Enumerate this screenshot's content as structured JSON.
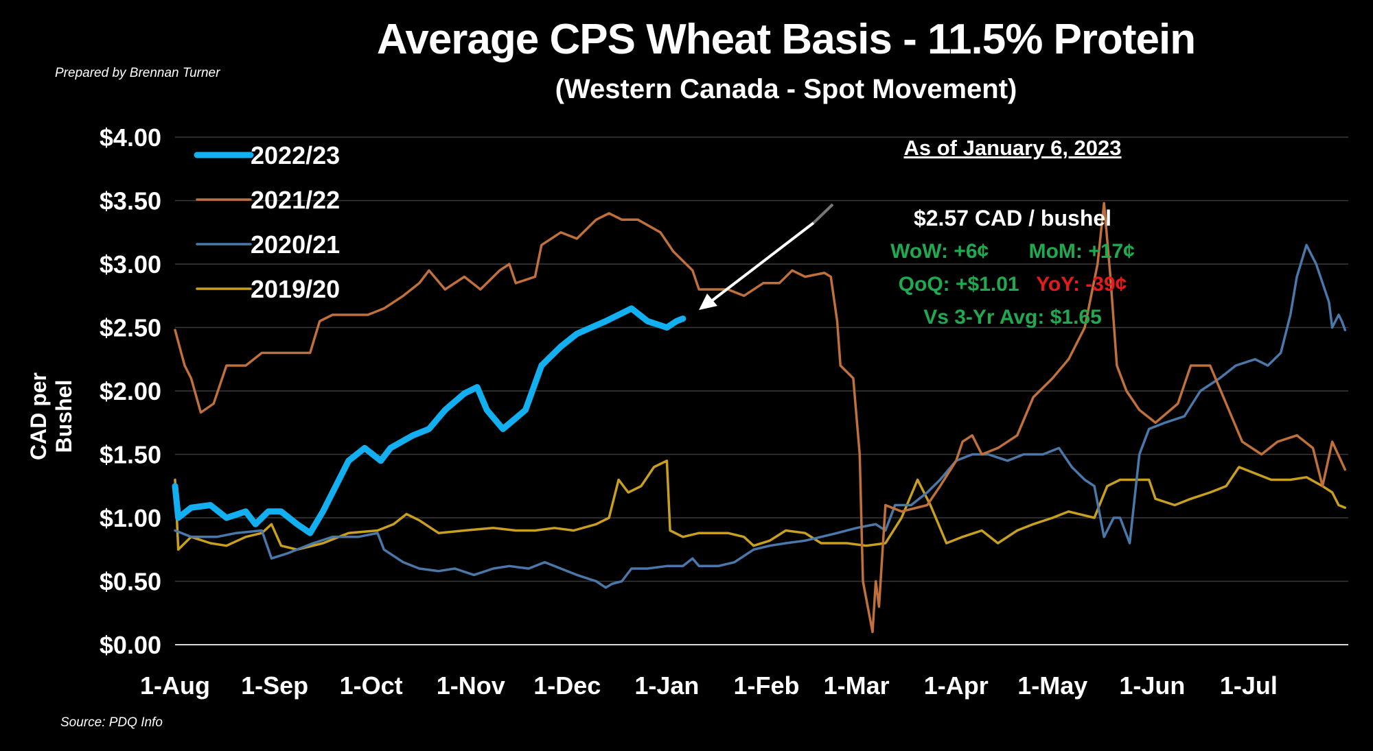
{
  "chart_data": {
    "type": "line",
    "title": "Average CPS Wheat Basis - 11.5% Protein",
    "subtitle": "(Western Canada - Spot Movement)",
    "prepared_by": "Prepared by Brennan Turner",
    "source": "Source: PDQ Info",
    "ylabel": "CAD per Bushel",
    "xlabel": "",
    "ylim": [
      0,
      4
    ],
    "yticks": [
      "$0.00",
      "$0.50",
      "$1.00",
      "$1.50",
      "$2.00",
      "$2.50",
      "$3.00",
      "$3.50",
      "$4.00"
    ],
    "xticks": [
      "1-Aug",
      "1-Sep",
      "1-Oct",
      "1-Nov",
      "1-Dec",
      "1-Jan",
      "1-Feb",
      "1-Mar",
      "1-Apr",
      "1-May",
      "1-Jun",
      "1-Jul"
    ],
    "grid": true,
    "legend_position": "top-left",
    "background": "#000000",
    "series": [
      {
        "name": "2022/23",
        "color": "#12b0f0",
        "x": [
          "08-01",
          "08-02",
          "08-06",
          "08-12",
          "08-17",
          "08-23",
          "08-26",
          "08-30",
          "09-03",
          "09-08",
          "09-12",
          "09-16",
          "09-20",
          "09-24",
          "09-29",
          "10-04",
          "10-07",
          "10-14",
          "10-19",
          "10-24",
          "10-30",
          "11-03",
          "11-06",
          "11-11",
          "11-18",
          "11-23",
          "11-29",
          "12-04",
          "12-13",
          "12-21",
          "12-26",
          "01-01",
          "01-04",
          "01-06"
        ],
        "y": [
          1.25,
          1.0,
          1.08,
          1.1,
          1.0,
          1.05,
          0.95,
          1.05,
          1.05,
          0.95,
          0.88,
          1.05,
          1.25,
          1.45,
          1.55,
          1.45,
          1.55,
          1.65,
          1.7,
          1.85,
          1.98,
          2.03,
          1.85,
          1.7,
          1.85,
          2.2,
          2.35,
          2.45,
          2.55,
          2.65,
          2.55,
          2.5,
          2.55,
          2.57
        ]
      },
      {
        "name": "2021/22",
        "color": "#c0703a",
        "x": [
          "08-01",
          "08-04",
          "08-06",
          "08-09",
          "08-13",
          "08-17",
          "08-23",
          "08-28",
          "09-03",
          "09-12",
          "09-15",
          "09-19",
          "09-24",
          "09-30",
          "10-05",
          "10-11",
          "10-16",
          "10-19",
          "10-24",
          "10-30",
          "11-04",
          "11-10",
          "11-13",
          "11-15",
          "11-21",
          "11-23",
          "11-29",
          "12-04",
          "12-10",
          "12-14",
          "12-18",
          "12-23",
          "12-30",
          "01-03",
          "01-09",
          "01-11",
          "01-20",
          "01-25",
          "01-31",
          "02-05",
          "02-09",
          "02-13",
          "02-19",
          "02-21",
          "02-23",
          "02-24",
          "02-28",
          "03-02",
          "03-03",
          "03-06",
          "03-07",
          "03-08",
          "03-10",
          "03-15",
          "03-23",
          "03-27",
          "04-01",
          "04-03",
          "04-06",
          "04-09",
          "04-14",
          "04-20",
          "04-25",
          "05-01",
          "05-06",
          "05-11",
          "05-15",
          "05-17",
          "05-19",
          "05-21",
          "05-24",
          "05-28",
          "06-02",
          "06-09",
          "06-13",
          "06-19",
          "06-24",
          "06-29",
          "07-05",
          "07-10",
          "07-16",
          "07-21",
          "07-24",
          "07-27",
          "07-31"
        ],
        "y": [
          2.48,
          2.2,
          2.1,
          1.83,
          1.9,
          2.2,
          2.2,
          2.3,
          2.3,
          2.3,
          2.55,
          2.6,
          2.6,
          2.6,
          2.65,
          2.75,
          2.85,
          2.95,
          2.8,
          2.9,
          2.8,
          2.95,
          3.0,
          2.85,
          2.9,
          3.15,
          3.25,
          3.2,
          3.35,
          3.4,
          3.35,
          3.35,
          3.25,
          3.1,
          2.95,
          2.8,
          2.8,
          2.75,
          2.85,
          2.85,
          2.95,
          2.9,
          2.93,
          2.9,
          2.55,
          2.2,
          2.1,
          1.5,
          0.5,
          0.1,
          0.5,
          0.3,
          1.1,
          1.05,
          1.1,
          1.25,
          1.45,
          1.6,
          1.65,
          1.5,
          1.55,
          1.65,
          1.95,
          2.1,
          2.25,
          2.5,
          3.0,
          3.48,
          2.9,
          2.2,
          2.0,
          1.85,
          1.75,
          1.9,
          2.2,
          2.2,
          1.9,
          1.6,
          1.5,
          1.6,
          1.65,
          1.55,
          1.25,
          1.6,
          1.38
        ]
      },
      {
        "name": "2020/21",
        "color": "#4a78aa",
        "x": [
          "08-01",
          "08-06",
          "08-14",
          "08-20",
          "08-28",
          "08-31",
          "09-05",
          "09-13",
          "09-19",
          "09-27",
          "10-03",
          "10-05",
          "10-11",
          "10-16",
          "10-22",
          "10-27",
          "11-02",
          "11-08",
          "11-13",
          "11-19",
          "11-24",
          "11-29",
          "12-04",
          "12-10",
          "12-13",
          "12-15",
          "12-18",
          "12-21",
          "12-26",
          "01-01",
          "01-06",
          "01-09",
          "01-11",
          "01-17",
          "01-22",
          "01-28",
          "02-02",
          "02-07",
          "02-13",
          "02-18",
          "02-23",
          "03-01",
          "03-07",
          "03-10",
          "03-13",
          "03-18",
          "03-23",
          "03-27",
          "04-01",
          "04-06",
          "04-11",
          "04-17",
          "04-22",
          "04-28",
          "05-03",
          "05-07",
          "05-11",
          "05-14",
          "05-17",
          "05-20",
          "05-22",
          "05-25",
          "05-28",
          "05-31",
          "06-05",
          "06-11",
          "06-16",
          "06-22",
          "06-27",
          "07-03",
          "07-07",
          "07-11",
          "07-14",
          "07-16",
          "07-19",
          "07-22",
          "07-26",
          "07-27",
          "07-29",
          "07-30",
          "07-31"
        ],
        "y": [
          0.9,
          0.85,
          0.85,
          0.88,
          0.9,
          0.68,
          0.72,
          0.8,
          0.85,
          0.85,
          0.88,
          0.75,
          0.65,
          0.6,
          0.58,
          0.6,
          0.55,
          0.6,
          0.62,
          0.6,
          0.65,
          0.6,
          0.55,
          0.5,
          0.45,
          0.48,
          0.5,
          0.6,
          0.6,
          0.62,
          0.62,
          0.68,
          0.62,
          0.62,
          0.65,
          0.75,
          0.78,
          0.8,
          0.82,
          0.85,
          0.88,
          0.92,
          0.95,
          0.9,
          1.1,
          1.1,
          1.2,
          1.3,
          1.45,
          1.5,
          1.5,
          1.45,
          1.5,
          1.5,
          1.55,
          1.4,
          1.3,
          1.25,
          0.85,
          1.0,
          1.0,
          0.8,
          1.5,
          1.7,
          1.75,
          1.8,
          2.0,
          2.1,
          2.2,
          2.25,
          2.2,
          2.3,
          2.6,
          2.9,
          3.15,
          3.0,
          2.7,
          2.5,
          2.6,
          2.55,
          2.48
        ]
      },
      {
        "name": "2019/20",
        "color": "#c9a01e",
        "x": [
          "08-01",
          "08-02",
          "08-06",
          "08-12",
          "08-17",
          "08-23",
          "08-28",
          "08-31",
          "09-03",
          "09-08",
          "09-16",
          "09-24",
          "10-03",
          "10-08",
          "10-12",
          "10-16",
          "10-22",
          "10-30",
          "11-08",
          "11-15",
          "11-21",
          "11-27",
          "12-03",
          "12-10",
          "12-14",
          "12-17",
          "12-20",
          "12-24",
          "12-28",
          "01-01",
          "01-02",
          "01-06",
          "01-11",
          "01-20",
          "01-25",
          "01-28",
          "02-02",
          "02-07",
          "02-13",
          "02-18",
          "02-26",
          "03-04",
          "03-10",
          "03-15",
          "03-20",
          "03-24",
          "03-29",
          "04-03",
          "04-09",
          "04-14",
          "04-20",
          "04-25",
          "05-01",
          "05-06",
          "05-14",
          "05-18",
          "05-22",
          "05-31",
          "06-02",
          "06-08",
          "06-13",
          "06-19",
          "06-24",
          "06-28",
          "07-03",
          "07-08",
          "07-14",
          "07-19",
          "07-24",
          "07-27",
          "07-29",
          "07-31"
        ],
        "y": [
          1.3,
          0.75,
          0.85,
          0.8,
          0.78,
          0.85,
          0.88,
          0.95,
          0.78,
          0.75,
          0.8,
          0.88,
          0.9,
          0.95,
          1.03,
          0.98,
          0.88,
          0.9,
          0.92,
          0.9,
          0.9,
          0.92,
          0.9,
          0.95,
          1.0,
          1.3,
          1.2,
          1.25,
          1.4,
          1.45,
          0.9,
          0.85,
          0.88,
          0.88,
          0.85,
          0.78,
          0.82,
          0.9,
          0.88,
          0.8,
          0.8,
          0.78,
          0.8,
          1.0,
          1.3,
          1.1,
          0.8,
          0.85,
          0.9,
          0.8,
          0.9,
          0.95,
          1.0,
          1.05,
          1.0,
          1.25,
          1.3,
          1.3,
          1.15,
          1.1,
          1.15,
          1.2,
          1.25,
          1.4,
          1.35,
          1.3,
          1.3,
          1.32,
          1.25,
          1.2,
          1.1,
          1.08
        ]
      }
    ]
  },
  "annotation": {
    "as_of": "As of January 6, 2023",
    "price": "$2.57 CAD / bushel",
    "wow": "WoW: +6¢",
    "mom": "MoM: +17¢",
    "qoq": "QoQ: +$1.01",
    "yoy": "YoY: -39¢",
    "vs_avg": "Vs 3-Yr Avg: $1.65",
    "positive_color": "#1faa4f",
    "negative_color": "#e41b1b"
  }
}
